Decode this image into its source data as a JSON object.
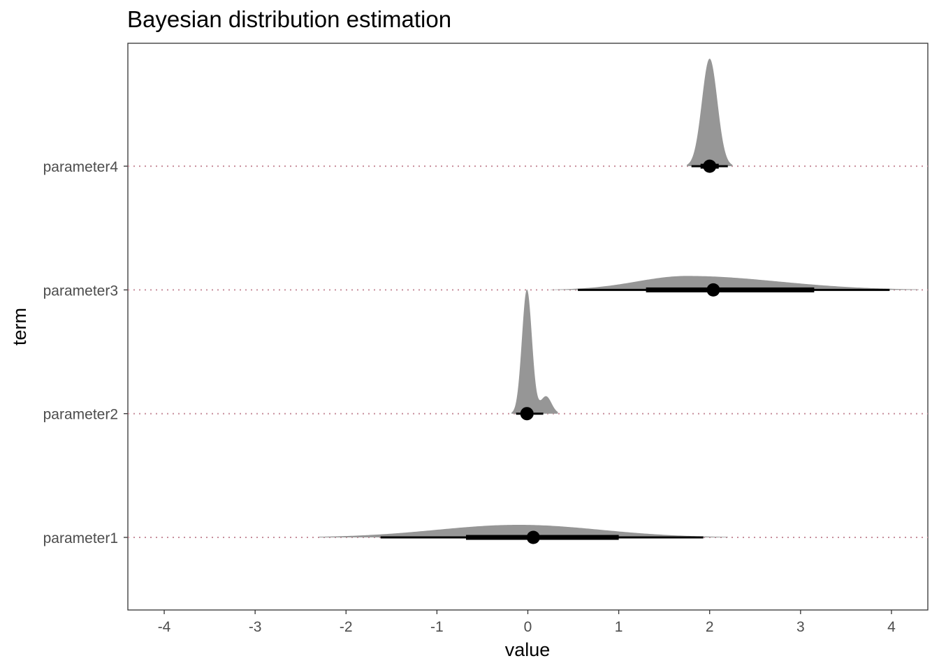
{
  "chart_data": {
    "type": "halfeye",
    "title": "Bayesian distribution estimation",
    "xlabel": "value",
    "ylabel": "term",
    "xlim": [
      -4.4,
      4.4
    ],
    "x_ticks": [
      -4,
      -3,
      -2,
      -1,
      0,
      1,
      2,
      3,
      4
    ],
    "x_tick_labels": [
      "-4",
      "-3",
      "-2",
      "-1",
      "0",
      "1",
      "2",
      "3",
      "4"
    ],
    "grid": false,
    "reference_line_style": "dotted",
    "colors": {
      "density_fill": "#969696",
      "interval": "#000000",
      "point": "#000000",
      "reference_line": "#c78d9b",
      "panel_border": "#333333"
    },
    "series": [
      {
        "term": "parameter1",
        "point": 0.06,
        "interval_66": [
          -0.68,
          1.0
        ],
        "interval_95": [
          -1.62,
          1.93
        ],
        "density_range": [
          -2.3,
          2.2
        ],
        "density_peak_height": 0.09
      },
      {
        "term": "parameter2",
        "point": -0.01,
        "interval_66": [
          -0.06,
          0.06
        ],
        "interval_95": [
          -0.13,
          0.17
        ],
        "density_range": [
          -0.18,
          0.33
        ],
        "density_peak_height": 0.89
      },
      {
        "term": "parameter3",
        "point": 2.04,
        "interval_66": [
          1.3,
          3.15
        ],
        "interval_95": [
          0.55,
          3.98
        ],
        "density_range": [
          0.25,
          4.3
        ],
        "density_peak_height": 0.1
      },
      {
        "term": "parameter4",
        "point": 2.0,
        "interval_66": [
          1.9,
          2.1
        ],
        "interval_95": [
          1.8,
          2.2
        ],
        "density_range": [
          1.75,
          2.25
        ],
        "density_peak_height": 0.77
      }
    ]
  }
}
